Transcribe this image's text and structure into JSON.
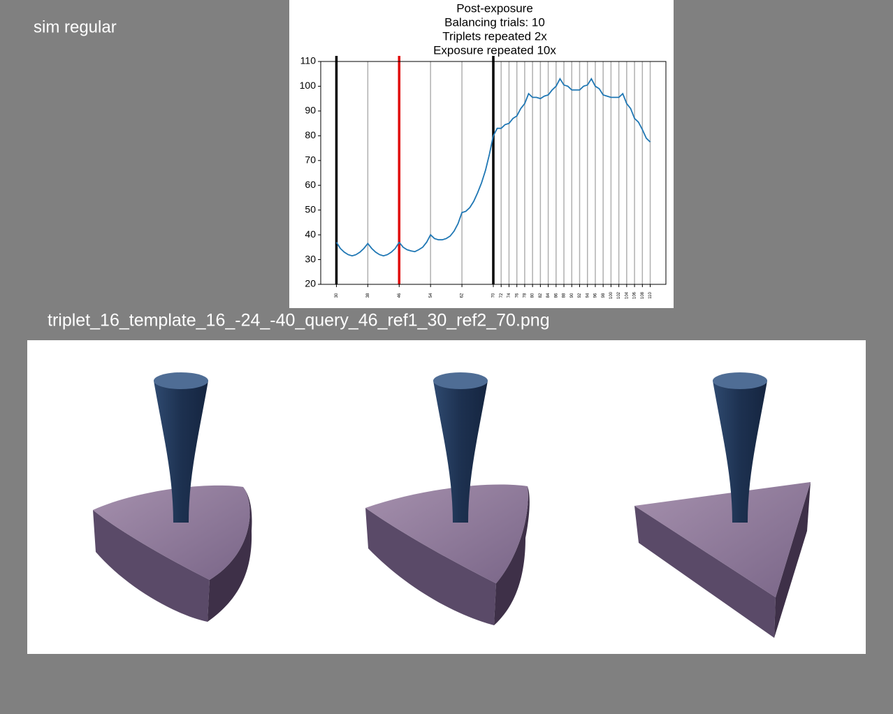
{
  "label": "sim regular",
  "filename": "triplet_16_template_16_-24_-40_query_46_ref1_30_ref2_70.png",
  "chart_data": {
    "type": "line",
    "title": [
      "Post-exposure",
      "Balancing trials: 10",
      "Triplets repeated 2x",
      "Exposure repeated 10x"
    ],
    "x": [
      30,
      31,
      32,
      33,
      34,
      35,
      36,
      37,
      38,
      39,
      40,
      41,
      42,
      43,
      44,
      45,
      46,
      47,
      48,
      49,
      50,
      51,
      52,
      53,
      54,
      55,
      56,
      57,
      58,
      59,
      60,
      61,
      62,
      63,
      64,
      65,
      66,
      67,
      68,
      69,
      70,
      71,
      72,
      73,
      74,
      75,
      76,
      77,
      78,
      79,
      80,
      81,
      82,
      83,
      84,
      85,
      86,
      87,
      88,
      89,
      90,
      91,
      92,
      93,
      94,
      95,
      96,
      97,
      98,
      99,
      100,
      101,
      102,
      103,
      104,
      105,
      106,
      107,
      108,
      109,
      110
    ],
    "values": [
      37,
      34.5,
      33,
      32,
      31.5,
      32,
      33,
      34.5,
      36.5,
      34.5,
      33,
      32,
      31.5,
      32,
      33,
      34.5,
      37,
      35,
      34,
      33.5,
      33.2,
      34,
      35,
      37,
      40,
      38.5,
      38,
      38,
      38.5,
      39.5,
      41.5,
      44.5,
      49,
      49.5,
      51,
      53.5,
      57,
      61,
      66,
      72.5,
      80,
      83,
      83,
      84.5,
      85,
      87,
      88,
      91,
      93,
      97,
      95.5,
      95.5,
      95,
      96,
      96.5,
      98.5,
      100,
      103,
      100.5,
      100,
      98.5,
      98.5,
      98.5,
      100,
      100.5,
      103,
      100,
      99,
      96.5,
      96,
      95.5,
      95.5,
      95.5,
      97,
      93,
      91,
      87,
      85.5,
      82.5,
      79,
      77.5
    ],
    "color": "#1f77b4",
    "xlim": [
      26,
      114
    ],
    "ylim": [
      20,
      110
    ],
    "xticks": [
      30,
      38,
      46,
      54,
      62,
      70,
      72,
      74,
      76,
      78,
      80,
      82,
      84,
      86,
      88,
      90,
      92,
      94,
      96,
      98,
      100,
      102,
      104,
      106,
      108,
      110
    ],
    "yticks": [
      20,
      30,
      40,
      50,
      60,
      70,
      80,
      90,
      100,
      110
    ],
    "grid": true,
    "highlight_lines": [
      {
        "x": 30,
        "color": "#000000"
      },
      {
        "x": 46,
        "color": "#e00000"
      },
      {
        "x": 70,
        "color": "#000000"
      }
    ]
  }
}
